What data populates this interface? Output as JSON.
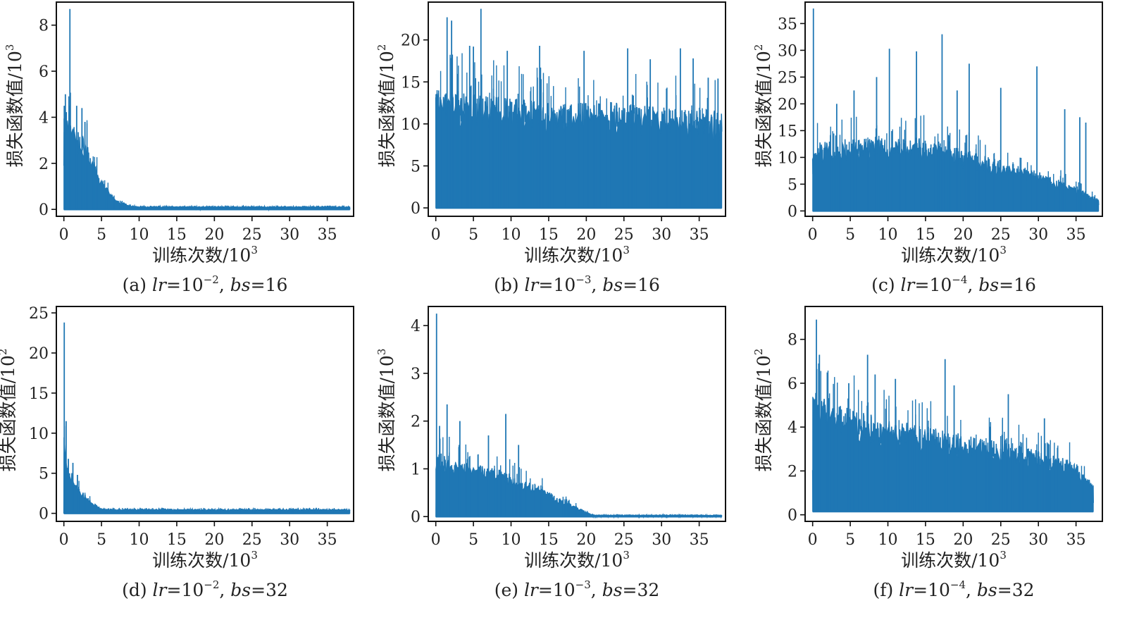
{
  "colors": {
    "series": "#1f77b4",
    "axis": "#111111",
    "text": "#222222"
  },
  "chart_data": [
    {
      "id": "a",
      "type": "line",
      "title": "(a) lr=10⁻², bs=16",
      "caption": {
        "prefix": "(a) ",
        "lr_label": "lr",
        "lr_value": "=10",
        "lr_exp": "−2",
        "sep": ", ",
        "bs_label": "bs",
        "bs_value": "=16"
      },
      "xlabel": "训练次数/10",
      "xlabel_exp": "3",
      "ylabel": "损失函数值/10",
      "ylabel_exp": "3",
      "xlim": [
        -1,
        38.5
      ],
      "ylim": [
        -0.3,
        9
      ],
      "xticks": [
        0,
        5,
        10,
        15,
        20,
        25,
        30,
        35
      ],
      "yticks": [
        0,
        2,
        4,
        6,
        8
      ],
      "x_end": 38,
      "envelope": [
        [
          0,
          4.2
        ],
        [
          0.4,
          4.3
        ],
        [
          1,
          3.6
        ],
        [
          2,
          3.2
        ],
        [
          3,
          3.0
        ],
        [
          4,
          2.0
        ],
        [
          5,
          1.3
        ],
        [
          6,
          0.8
        ],
        [
          7,
          0.4
        ],
        [
          8,
          0.25
        ],
        [
          9,
          0.15
        ],
        [
          10,
          0.12
        ],
        [
          38,
          0.12
        ]
      ],
      "spikes": [
        [
          0.8,
          8.7
        ],
        [
          0.2,
          5.0
        ],
        [
          1.7,
          4.5
        ],
        [
          2.4,
          4.4
        ],
        [
          2.8,
          3.8
        ],
        [
          0.05,
          4.5
        ]
      ]
    },
    {
      "id": "b",
      "type": "line",
      "title": "(b) lr=10⁻³, bs=16",
      "caption": {
        "prefix": "(b) ",
        "lr_label": "lr",
        "lr_value": "=10",
        "lr_exp": "−3",
        "sep": ", ",
        "bs_label": "bs",
        "bs_value": "=16"
      },
      "xlabel": "训练次数/10",
      "xlabel_exp": "3",
      "ylabel": "损失函数值/10",
      "ylabel_exp": "2",
      "xlim": [
        -1,
        38.5
      ],
      "ylim": [
        -1,
        24.5
      ],
      "xticks": [
        0,
        5,
        10,
        15,
        20,
        25,
        30,
        35
      ],
      "yticks": [
        0,
        5,
        10,
        15,
        20
      ],
      "x_end": 38,
      "envelope": [
        [
          0,
          14
        ],
        [
          2,
          13.5
        ],
        [
          5,
          13
        ],
        [
          10,
          12.5
        ],
        [
          15,
          12
        ],
        [
          20,
          12
        ],
        [
          25,
          12
        ],
        [
          30,
          11.5
        ],
        [
          38,
          11
        ]
      ],
      "spikes": [
        [
          1.5,
          22.7
        ],
        [
          2.1,
          22.3
        ],
        [
          6.0,
          23.7
        ],
        [
          4.5,
          19.3
        ],
        [
          5.0,
          19.2
        ],
        [
          9.5,
          18.7
        ],
        [
          13.8,
          19.3
        ],
        [
          19.7,
          18.7
        ],
        [
          25.5,
          19.0
        ],
        [
          28.5,
          17.7
        ],
        [
          32.5,
          19.0
        ],
        [
          34.2,
          17.8
        ],
        [
          36.2,
          15.5
        ],
        [
          37.5,
          15.4
        ]
      ]
    },
    {
      "id": "c",
      "type": "line",
      "title": "(c) lr=10⁻⁴, bs=16",
      "caption": {
        "prefix": "(c) ",
        "lr_label": "lr",
        "lr_value": "=10",
        "lr_exp": "−4",
        "sep": ", ",
        "bs_label": "bs",
        "bs_value": "=16"
      },
      "xlabel": "训练次数/10",
      "xlabel_exp": "3",
      "ylabel": "损失函数值/10",
      "ylabel_exp": "2",
      "xlim": [
        -1,
        38.5
      ],
      "ylim": [
        -1,
        39
      ],
      "xticks": [
        0,
        5,
        10,
        15,
        20,
        25,
        30,
        35
      ],
      "yticks": [
        0,
        5,
        10,
        15,
        20,
        25,
        30,
        35
      ],
      "x_end": 38,
      "envelope": [
        [
          0,
          12
        ],
        [
          5,
          13
        ],
        [
          10,
          13
        ],
        [
          15,
          13
        ],
        [
          20,
          11
        ],
        [
          25,
          9
        ],
        [
          30,
          7
        ],
        [
          34,
          5
        ],
        [
          38,
          2
        ]
      ],
      "spikes": [
        [
          0.1,
          37.8
        ],
        [
          8.5,
          25.0
        ],
        [
          10.2,
          30.3
        ],
        [
          13.8,
          29.8
        ],
        [
          17.2,
          33.0
        ],
        [
          20.8,
          27.5
        ],
        [
          25.0,
          23.0
        ],
        [
          29.8,
          27.0
        ],
        [
          33.5,
          19.0
        ],
        [
          35.5,
          17.5
        ],
        [
          36.3,
          16.5
        ],
        [
          5.5,
          22.5
        ],
        [
          3.2,
          20.0
        ],
        [
          19.2,
          22.5
        ]
      ]
    },
    {
      "id": "d",
      "type": "line",
      "title": "(d) lr=10⁻², bs=32",
      "caption": {
        "prefix": "(d) ",
        "lr_label": "lr",
        "lr_value": "=10",
        "lr_exp": "−2",
        "sep": ", ",
        "bs_label": "bs",
        "bs_value": "=32"
      },
      "xlabel": "训练次数/10",
      "xlabel_exp": "3",
      "ylabel": "损失函数值/10",
      "ylabel_exp": "2",
      "xlim": [
        -1,
        38.5
      ],
      "ylim": [
        -1,
        25.8
      ],
      "xticks": [
        0,
        5,
        10,
        15,
        20,
        25,
        30,
        35
      ],
      "yticks": [
        0,
        5,
        10,
        15,
        20,
        25
      ],
      "x_end": 38,
      "envelope": [
        [
          0,
          10
        ],
        [
          0.5,
          6
        ],
        [
          1,
          5
        ],
        [
          2,
          3
        ],
        [
          3,
          2
        ],
        [
          4,
          1.2
        ],
        [
          5,
          0.6
        ],
        [
          6,
          0.5
        ],
        [
          38,
          0.5
        ]
      ],
      "spikes": [
        [
          0.05,
          23.8
        ],
        [
          0.3,
          11.5
        ],
        [
          0.6,
          6.8
        ],
        [
          1.2,
          6.3
        ],
        [
          1.8,
          4.8
        ]
      ]
    },
    {
      "id": "e",
      "type": "line",
      "title": "(e) lr=10⁻³, bs=32",
      "caption": {
        "prefix": "(e) ",
        "lr_label": "lr",
        "lr_value": "=10",
        "lr_exp": "−3",
        "sep": ", ",
        "bs_label": "bs",
        "bs_value": "=32"
      },
      "xlabel": "训练次数/10",
      "xlabel_exp": "3",
      "ylabel": "损失函数值/10",
      "ylabel_exp": "3",
      "xlim": [
        -1,
        38.5
      ],
      "ylim": [
        -0.1,
        4.4
      ],
      "xticks": [
        0,
        5,
        10,
        15,
        20,
        25,
        30,
        35
      ],
      "yticks": [
        0,
        1,
        2,
        3,
        4
      ],
      "x_end": 38,
      "envelope": [
        [
          0,
          1.3
        ],
        [
          2,
          1.2
        ],
        [
          5,
          1.05
        ],
        [
          8,
          0.95
        ],
        [
          10,
          0.85
        ],
        [
          12,
          0.7
        ],
        [
          14,
          0.6
        ],
        [
          16,
          0.4
        ],
        [
          18,
          0.25
        ],
        [
          20,
          0.1
        ],
        [
          21,
          0.03
        ],
        [
          38,
          0.03
        ]
      ],
      "spikes": [
        [
          0.1,
          4.25
        ],
        [
          1.5,
          2.35
        ],
        [
          3.2,
          2.0
        ],
        [
          9.3,
          2.15
        ],
        [
          7.0,
          1.7
        ],
        [
          11.0,
          1.5
        ],
        [
          0.5,
          1.9
        ]
      ]
    },
    {
      "id": "f",
      "type": "line",
      "title": "(f) lr=10⁻⁴, bs=32",
      "caption": {
        "prefix": "(f) ",
        "lr_label": "lr",
        "lr_value": "=10",
        "lr_exp": "−4",
        "sep": ", ",
        "bs_label": "bs",
        "bs_value": "=32"
      },
      "xlabel": "训练次数/10",
      "xlabel_exp": "3",
      "ylabel": "损失函数值/10",
      "ylabel_exp": "2",
      "xlim": [
        -1,
        38.5
      ],
      "ylim": [
        -0.3,
        9.5
      ],
      "xticks": [
        0,
        5,
        10,
        15,
        20,
        25,
        30,
        35
      ],
      "yticks": [
        0,
        2,
        4,
        6,
        8
      ],
      "x_end": 37.3,
      "y_floor": 0.15,
      "envelope": [
        [
          0,
          5.5
        ],
        [
          2,
          5.0
        ],
        [
          5,
          4.6
        ],
        [
          10,
          4.2
        ],
        [
          15,
          3.9
        ],
        [
          20,
          3.5
        ],
        [
          25,
          3.2
        ],
        [
          30,
          2.8
        ],
        [
          35,
          2.3
        ],
        [
          37.3,
          1.4
        ]
      ],
      "spikes": [
        [
          0.5,
          8.9
        ],
        [
          0.9,
          7.3
        ],
        [
          7.3,
          7.3
        ],
        [
          17.6,
          7.1
        ],
        [
          8.3,
          6.4
        ],
        [
          11.0,
          6.2
        ],
        [
          18.8,
          5.9
        ],
        [
          26.0,
          5.5
        ],
        [
          30.8,
          4.4
        ],
        [
          4.8,
          6.0
        ]
      ]
    }
  ]
}
